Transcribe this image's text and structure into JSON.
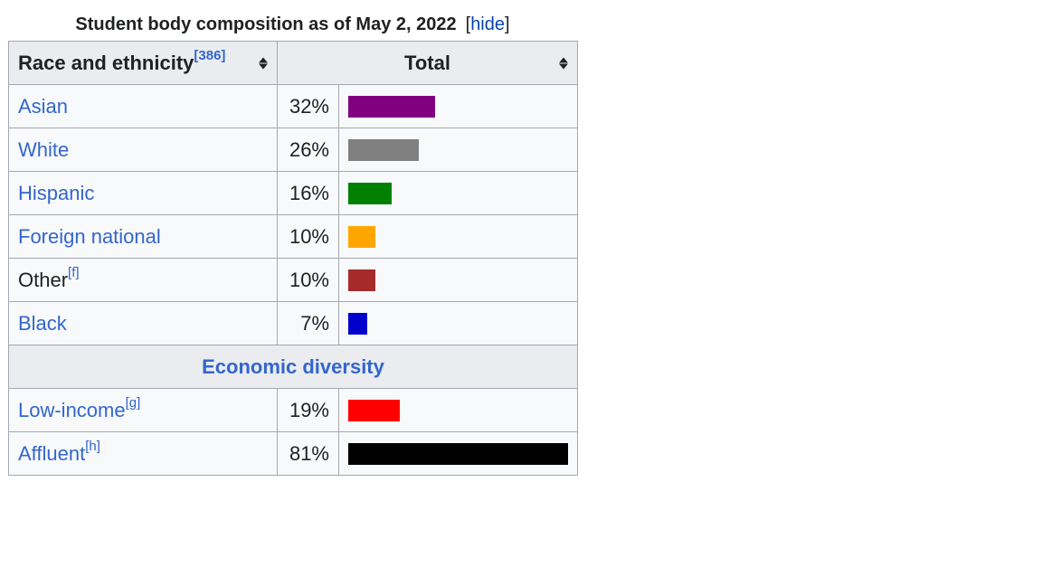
{
  "caption": {
    "title": "Student body composition as of May 2, 2022",
    "toggle_open": "[",
    "toggle_label": "hide",
    "toggle_close": "]"
  },
  "header": {
    "col1_label": "Race and ethnicity",
    "col1_ref": "[386]",
    "col2_label": "Total"
  },
  "section_label": "Economic diversity",
  "chart_data": {
    "type": "bar",
    "title": "Student body composition as of May 2, 2022",
    "unit": "%",
    "xlim": [
      0,
      81
    ],
    "groups": [
      {
        "name": "",
        "rows": [
          {
            "label": "Asian",
            "ref": "",
            "value": 32,
            "display": "32%",
            "color": "#800080",
            "link": true
          },
          {
            "label": "White",
            "ref": "",
            "value": 26,
            "display": "26%",
            "color": "#808080",
            "link": true
          },
          {
            "label": "Hispanic",
            "ref": "",
            "value": 16,
            "display": "16%",
            "color": "#008000",
            "link": true
          },
          {
            "label": "Foreign national",
            "ref": "",
            "value": 10,
            "display": "10%",
            "color": "#ffa500",
            "link": true
          },
          {
            "label": "Other",
            "ref": "[f]",
            "value": 10,
            "display": "10%",
            "color": "#a52a2a",
            "link": false
          },
          {
            "label": "Black",
            "ref": "",
            "value": 7,
            "display": "7%",
            "color": "#0000cd",
            "link": true
          }
        ]
      },
      {
        "name": "Economic diversity",
        "rows": [
          {
            "label": "Low-income",
            "ref": "[g]",
            "value": 19,
            "display": "19%",
            "color": "#ff0000",
            "link": true
          },
          {
            "label": "Affluent",
            "ref": "[h]",
            "value": 81,
            "display": "81%",
            "color": "#000000",
            "link": true
          }
        ]
      }
    ]
  }
}
